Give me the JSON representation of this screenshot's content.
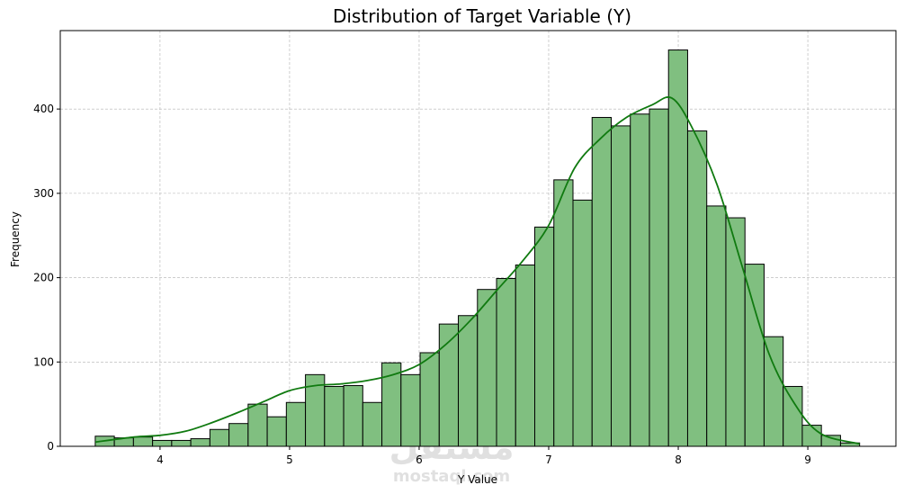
{
  "watermark": {
    "glyph": "مستقل",
    "text": "mostaql.com"
  },
  "chart_data": {
    "type": "bar",
    "title": "Distribution of Target Variable (Y)",
    "xlabel": "Y Value",
    "ylabel": "Frequency",
    "xlim": [
      3.23,
      9.68
    ],
    "ylim": [
      0,
      493
    ],
    "xticks": [
      4,
      5,
      6,
      7,
      8,
      9
    ],
    "yticks": [
      0,
      100,
      200,
      300,
      400
    ],
    "grid": true,
    "bin_start": 3.5,
    "bin_end": 9.4,
    "values": [
      12,
      10,
      11,
      7,
      7,
      9,
      20,
      27,
      50,
      35,
      52,
      85,
      71,
      72,
      52,
      99,
      85,
      111,
      145,
      155,
      186,
      199,
      215,
      260,
      316,
      292,
      390,
      380,
      394,
      400,
      470,
      374,
      285,
      271,
      216,
      130,
      71,
      25,
      13,
      4
    ],
    "kde": {
      "x": [
        3.5,
        3.8,
        4.0,
        4.2,
        4.4,
        4.6,
        4.8,
        5.0,
        5.2,
        5.4,
        5.6,
        5.8,
        6.0,
        6.2,
        6.4,
        6.6,
        6.8,
        7.0,
        7.2,
        7.4,
        7.6,
        7.8,
        7.95,
        8.1,
        8.3,
        8.5,
        8.7,
        8.9,
        9.1,
        9.4
      ],
      "y": [
        5,
        11,
        13,
        18,
        28,
        40,
        53,
        66,
        72,
        74,
        78,
        85,
        97,
        120,
        150,
        185,
        220,
        262,
        330,
        365,
        390,
        405,
        413,
        380,
        310,
        210,
        110,
        50,
        15,
        3
      ]
    },
    "colors": {
      "bar_fill": "#80bf80",
      "bar_edge": "#000000",
      "kde": "#107a10",
      "grid": "#b0b0b0"
    }
  }
}
